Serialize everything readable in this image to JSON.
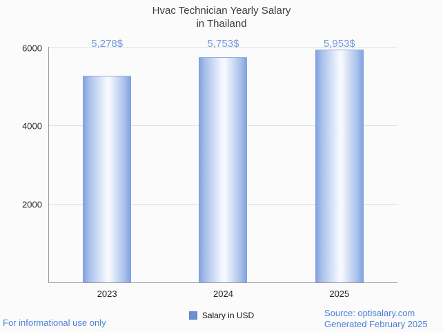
{
  "title": {
    "line1": "Hvac Technician Yearly Salary",
    "line2": "in Thailand"
  },
  "legend": {
    "label": "Salary in USD",
    "marker_color": "#6d8fd4"
  },
  "footer": {
    "left": "For informational use only",
    "source": "Source: optisalary.com",
    "generated": "Generated February 2025",
    "link_color": "#4b7fd6"
  },
  "chart_data": {
    "type": "bar",
    "title": "Hvac Technician Yearly Salary in Thailand",
    "categories": [
      "2023",
      "2024",
      "2025"
    ],
    "values": [
      5278,
      5753,
      5953
    ],
    "value_labels": [
      "5,278$",
      "5,753$",
      "5,953$"
    ],
    "series": [
      {
        "name": "Salary in USD",
        "values": [
          5278,
          5753,
          5953
        ]
      }
    ],
    "xlabel": "",
    "ylabel": "",
    "ylim": [
      0,
      6000
    ],
    "yticks": [
      2000,
      4000,
      6000
    ],
    "ytick_labels": [
      "2000",
      "4000",
      "6000"
    ],
    "grid": "horizontal",
    "legend_position": "bottom",
    "bar_edge_color": "#7fa0de",
    "bar_center_color": "#f7faff",
    "value_label_color": "#7298db"
  }
}
